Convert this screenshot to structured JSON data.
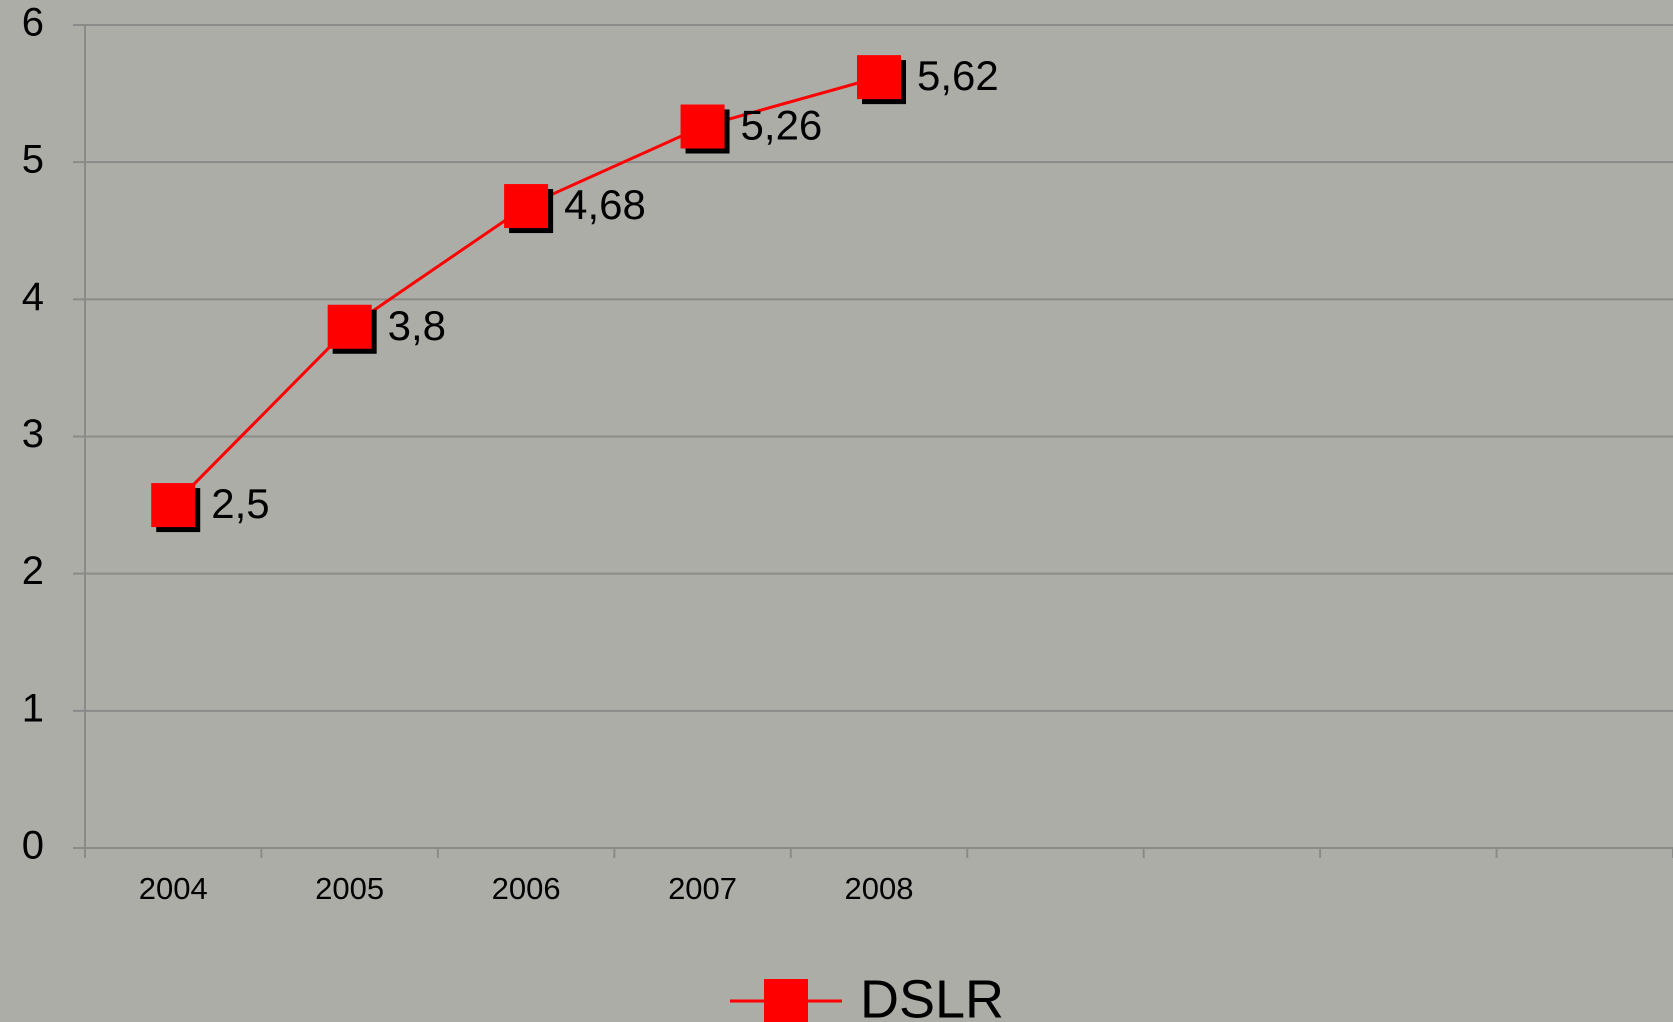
{
  "chart_data": {
    "type": "line",
    "categories": [
      "2004",
      "2005",
      "2006",
      "2007",
      "2008",
      null,
      null,
      null,
      null
    ],
    "series": [
      {
        "name": "DSLR",
        "color": "#ff0000",
        "values": [
          2.5,
          3.8,
          4.68,
          5.26,
          5.62,
          null,
          null,
          null,
          null
        ],
        "value_labels": [
          "2,5",
          "3,8",
          "4,68",
          "5,26",
          "5,62",
          null,
          null,
          null,
          null
        ]
      }
    ],
    "ylim": [
      0,
      6
    ],
    "yticks": [
      0,
      1,
      2,
      3,
      4,
      5,
      6
    ],
    "grid": true,
    "legend": "bottom"
  }
}
